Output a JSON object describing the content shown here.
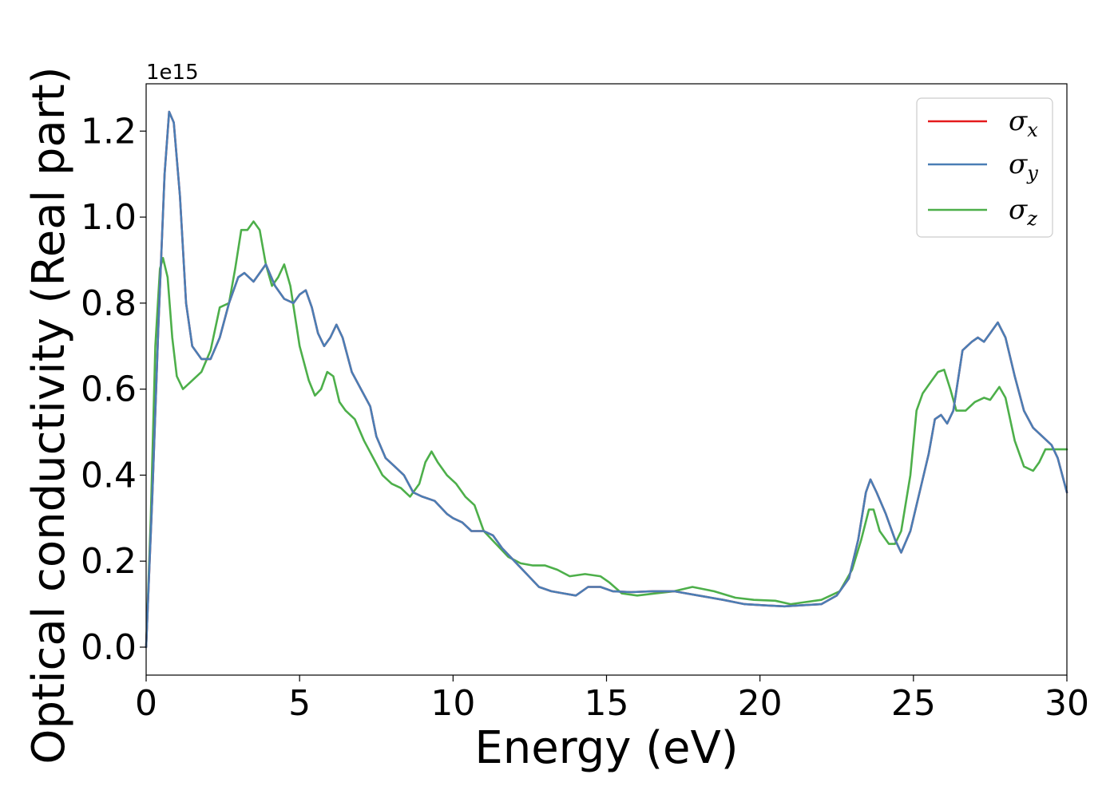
{
  "chart_data": {
    "type": "line",
    "xlabel": "Energy (eV)",
    "ylabel": "Optical conductivity (Real part)",
    "y_offset_label": "1e15",
    "xlim": [
      0,
      30
    ],
    "ylim": [
      -0.065,
      1.31
    ],
    "x_ticks": [
      0,
      5,
      10,
      15,
      20,
      25,
      30
    ],
    "x_tick_labels": [
      "0",
      "5",
      "10",
      "15",
      "20",
      "25",
      "30"
    ],
    "y_ticks": [
      0.0,
      0.2,
      0.4,
      0.6,
      0.8,
      1.0,
      1.2
    ],
    "y_tick_labels": [
      "0.0",
      "0.2",
      "0.4",
      "0.6",
      "0.8",
      "1.0",
      "1.2"
    ],
    "grid": false,
    "legend_position": "top-right",
    "series": [
      {
        "name": "σ",
        "subscript": "x",
        "color": "#e41a1c",
        "points": [
          [
            0,
            0
          ],
          [
            0.2,
            0.35
          ],
          [
            0.4,
            0.75
          ],
          [
            0.6,
            1.1
          ],
          [
            0.75,
            1.245
          ],
          [
            0.9,
            1.22
          ],
          [
            1.1,
            1.05
          ],
          [
            1.3,
            0.8
          ],
          [
            1.5,
            0.7
          ],
          [
            1.8,
            0.67
          ],
          [
            2.1,
            0.67
          ],
          [
            2.4,
            0.72
          ],
          [
            2.7,
            0.8
          ],
          [
            3.0,
            0.86
          ],
          [
            3.2,
            0.87
          ],
          [
            3.5,
            0.85
          ],
          [
            3.7,
            0.87
          ],
          [
            3.9,
            0.89
          ],
          [
            4.2,
            0.84
          ],
          [
            4.5,
            0.81
          ],
          [
            4.8,
            0.8
          ],
          [
            5.0,
            0.82
          ],
          [
            5.2,
            0.83
          ],
          [
            5.4,
            0.79
          ],
          [
            5.6,
            0.73
          ],
          [
            5.8,
            0.7
          ],
          [
            6.0,
            0.72
          ],
          [
            6.2,
            0.75
          ],
          [
            6.4,
            0.72
          ],
          [
            6.7,
            0.64
          ],
          [
            7.0,
            0.6
          ],
          [
            7.3,
            0.56
          ],
          [
            7.5,
            0.49
          ],
          [
            7.8,
            0.44
          ],
          [
            8.1,
            0.42
          ],
          [
            8.4,
            0.4
          ],
          [
            8.7,
            0.36
          ],
          [
            9.0,
            0.35
          ],
          [
            9.4,
            0.34
          ],
          [
            9.8,
            0.31
          ],
          [
            10.0,
            0.3
          ],
          [
            10.3,
            0.29
          ],
          [
            10.6,
            0.27
          ],
          [
            11.0,
            0.27
          ],
          [
            11.3,
            0.26
          ],
          [
            11.6,
            0.23
          ],
          [
            12.0,
            0.2
          ],
          [
            12.4,
            0.17
          ],
          [
            12.8,
            0.14
          ],
          [
            13.2,
            0.13
          ],
          [
            13.6,
            0.125
          ],
          [
            14.0,
            0.12
          ],
          [
            14.4,
            0.14
          ],
          [
            14.8,
            0.14
          ],
          [
            15.2,
            0.13
          ],
          [
            15.8,
            0.128
          ],
          [
            16.5,
            0.13
          ],
          [
            17.2,
            0.13
          ],
          [
            18.0,
            0.12
          ],
          [
            18.8,
            0.11
          ],
          [
            19.5,
            0.1
          ],
          [
            20.2,
            0.097
          ],
          [
            20.8,
            0.095
          ],
          [
            21.5,
            0.098
          ],
          [
            22.0,
            0.1
          ],
          [
            22.5,
            0.12
          ],
          [
            22.9,
            0.16
          ],
          [
            23.2,
            0.25
          ],
          [
            23.45,
            0.36
          ],
          [
            23.6,
            0.39
          ],
          [
            23.8,
            0.36
          ],
          [
            24.1,
            0.31
          ],
          [
            24.4,
            0.25
          ],
          [
            24.6,
            0.22
          ],
          [
            24.9,
            0.27
          ],
          [
            25.2,
            0.36
          ],
          [
            25.5,
            0.45
          ],
          [
            25.7,
            0.53
          ],
          [
            25.9,
            0.54
          ],
          [
            26.1,
            0.52
          ],
          [
            26.3,
            0.55
          ],
          [
            26.6,
            0.69
          ],
          [
            26.9,
            0.71
          ],
          [
            27.1,
            0.72
          ],
          [
            27.3,
            0.71
          ],
          [
            27.5,
            0.73
          ],
          [
            27.75,
            0.755
          ],
          [
            28.0,
            0.72
          ],
          [
            28.3,
            0.63
          ],
          [
            28.6,
            0.55
          ],
          [
            28.9,
            0.51
          ],
          [
            29.2,
            0.49
          ],
          [
            29.5,
            0.47
          ],
          [
            29.7,
            0.44
          ],
          [
            30.0,
            0.36
          ]
        ]
      },
      {
        "name": "σ",
        "subscript": "y",
        "color": "#4a7eb5",
        "points": [
          [
            0,
            0
          ],
          [
            0.2,
            0.35
          ],
          [
            0.4,
            0.75
          ],
          [
            0.6,
            1.1
          ],
          [
            0.75,
            1.245
          ],
          [
            0.9,
            1.22
          ],
          [
            1.1,
            1.05
          ],
          [
            1.3,
            0.8
          ],
          [
            1.5,
            0.7
          ],
          [
            1.8,
            0.67
          ],
          [
            2.1,
            0.67
          ],
          [
            2.4,
            0.72
          ],
          [
            2.7,
            0.8
          ],
          [
            3.0,
            0.86
          ],
          [
            3.2,
            0.87
          ],
          [
            3.5,
            0.85
          ],
          [
            3.7,
            0.87
          ],
          [
            3.9,
            0.89
          ],
          [
            4.2,
            0.84
          ],
          [
            4.5,
            0.81
          ],
          [
            4.8,
            0.8
          ],
          [
            5.0,
            0.82
          ],
          [
            5.2,
            0.83
          ],
          [
            5.4,
            0.79
          ],
          [
            5.6,
            0.73
          ],
          [
            5.8,
            0.7
          ],
          [
            6.0,
            0.72
          ],
          [
            6.2,
            0.75
          ],
          [
            6.4,
            0.72
          ],
          [
            6.7,
            0.64
          ],
          [
            7.0,
            0.6
          ],
          [
            7.3,
            0.56
          ],
          [
            7.5,
            0.49
          ],
          [
            7.8,
            0.44
          ],
          [
            8.1,
            0.42
          ],
          [
            8.4,
            0.4
          ],
          [
            8.7,
            0.36
          ],
          [
            9.0,
            0.35
          ],
          [
            9.4,
            0.34
          ],
          [
            9.8,
            0.31
          ],
          [
            10.0,
            0.3
          ],
          [
            10.3,
            0.29
          ],
          [
            10.6,
            0.27
          ],
          [
            11.0,
            0.27
          ],
          [
            11.3,
            0.26
          ],
          [
            11.6,
            0.23
          ],
          [
            12.0,
            0.2
          ],
          [
            12.4,
            0.17
          ],
          [
            12.8,
            0.14
          ],
          [
            13.2,
            0.13
          ],
          [
            13.6,
            0.125
          ],
          [
            14.0,
            0.12
          ],
          [
            14.4,
            0.14
          ],
          [
            14.8,
            0.14
          ],
          [
            15.2,
            0.13
          ],
          [
            15.8,
            0.128
          ],
          [
            16.5,
            0.13
          ],
          [
            17.2,
            0.13
          ],
          [
            18.0,
            0.12
          ],
          [
            18.8,
            0.11
          ],
          [
            19.5,
            0.1
          ],
          [
            20.2,
            0.097
          ],
          [
            20.8,
            0.095
          ],
          [
            21.5,
            0.098
          ],
          [
            22.0,
            0.1
          ],
          [
            22.5,
            0.12
          ],
          [
            22.9,
            0.16
          ],
          [
            23.2,
            0.25
          ],
          [
            23.45,
            0.36
          ],
          [
            23.6,
            0.39
          ],
          [
            23.8,
            0.36
          ],
          [
            24.1,
            0.31
          ],
          [
            24.4,
            0.25
          ],
          [
            24.6,
            0.22
          ],
          [
            24.9,
            0.27
          ],
          [
            25.2,
            0.36
          ],
          [
            25.5,
            0.45
          ],
          [
            25.7,
            0.53
          ],
          [
            25.9,
            0.54
          ],
          [
            26.1,
            0.52
          ],
          [
            26.3,
            0.55
          ],
          [
            26.6,
            0.69
          ],
          [
            26.9,
            0.71
          ],
          [
            27.1,
            0.72
          ],
          [
            27.3,
            0.71
          ],
          [
            27.5,
            0.73
          ],
          [
            27.75,
            0.755
          ],
          [
            28.0,
            0.72
          ],
          [
            28.3,
            0.63
          ],
          [
            28.6,
            0.55
          ],
          [
            28.9,
            0.51
          ],
          [
            29.2,
            0.49
          ],
          [
            29.5,
            0.47
          ],
          [
            29.7,
            0.44
          ],
          [
            30.0,
            0.36
          ]
        ]
      },
      {
        "name": "σ",
        "subscript": "z",
        "color": "#4daf4a",
        "points": [
          [
            0,
            0
          ],
          [
            0.15,
            0.3
          ],
          [
            0.3,
            0.7
          ],
          [
            0.45,
            0.88
          ],
          [
            0.55,
            0.905
          ],
          [
            0.7,
            0.86
          ],
          [
            0.85,
            0.72
          ],
          [
            1.0,
            0.63
          ],
          [
            1.2,
            0.6
          ],
          [
            1.5,
            0.62
          ],
          [
            1.8,
            0.64
          ],
          [
            2.1,
            0.69
          ],
          [
            2.4,
            0.79
          ],
          [
            2.7,
            0.8
          ],
          [
            2.9,
            0.88
          ],
          [
            3.1,
            0.97
          ],
          [
            3.3,
            0.97
          ],
          [
            3.5,
            0.99
          ],
          [
            3.7,
            0.97
          ],
          [
            3.9,
            0.89
          ],
          [
            4.1,
            0.84
          ],
          [
            4.3,
            0.86
          ],
          [
            4.5,
            0.89
          ],
          [
            4.7,
            0.84
          ],
          [
            5.0,
            0.7
          ],
          [
            5.3,
            0.62
          ],
          [
            5.5,
            0.585
          ],
          [
            5.7,
            0.6
          ],
          [
            5.9,
            0.64
          ],
          [
            6.1,
            0.63
          ],
          [
            6.3,
            0.57
          ],
          [
            6.5,
            0.55
          ],
          [
            6.8,
            0.53
          ],
          [
            7.1,
            0.48
          ],
          [
            7.4,
            0.44
          ],
          [
            7.7,
            0.4
          ],
          [
            8.0,
            0.38
          ],
          [
            8.3,
            0.37
          ],
          [
            8.6,
            0.35
          ],
          [
            8.9,
            0.38
          ],
          [
            9.1,
            0.43
          ],
          [
            9.3,
            0.455
          ],
          [
            9.5,
            0.43
          ],
          [
            9.8,
            0.4
          ],
          [
            10.1,
            0.38
          ],
          [
            10.4,
            0.35
          ],
          [
            10.7,
            0.33
          ],
          [
            11.0,
            0.27
          ],
          [
            11.4,
            0.24
          ],
          [
            11.8,
            0.21
          ],
          [
            12.2,
            0.195
          ],
          [
            12.6,
            0.19
          ],
          [
            13.0,
            0.19
          ],
          [
            13.4,
            0.18
          ],
          [
            13.8,
            0.165
          ],
          [
            14.3,
            0.17
          ],
          [
            14.8,
            0.165
          ],
          [
            15.1,
            0.15
          ],
          [
            15.5,
            0.125
          ],
          [
            16.0,
            0.12
          ],
          [
            16.6,
            0.125
          ],
          [
            17.2,
            0.13
          ],
          [
            17.8,
            0.14
          ],
          [
            18.5,
            0.13
          ],
          [
            19.2,
            0.115
          ],
          [
            19.8,
            0.11
          ],
          [
            20.5,
            0.108
          ],
          [
            21.0,
            0.1
          ],
          [
            21.5,
            0.105
          ],
          [
            22.0,
            0.11
          ],
          [
            22.6,
            0.13
          ],
          [
            23.0,
            0.18
          ],
          [
            23.3,
            0.25
          ],
          [
            23.55,
            0.32
          ],
          [
            23.7,
            0.32
          ],
          [
            23.9,
            0.27
          ],
          [
            24.2,
            0.24
          ],
          [
            24.4,
            0.24
          ],
          [
            24.6,
            0.27
          ],
          [
            24.9,
            0.4
          ],
          [
            25.1,
            0.55
          ],
          [
            25.3,
            0.59
          ],
          [
            25.6,
            0.62
          ],
          [
            25.8,
            0.64
          ],
          [
            26.0,
            0.645
          ],
          [
            26.2,
            0.6
          ],
          [
            26.4,
            0.55
          ],
          [
            26.7,
            0.55
          ],
          [
            27.0,
            0.57
          ],
          [
            27.3,
            0.58
          ],
          [
            27.5,
            0.575
          ],
          [
            27.8,
            0.605
          ],
          [
            28.0,
            0.58
          ],
          [
            28.3,
            0.48
          ],
          [
            28.6,
            0.42
          ],
          [
            28.9,
            0.41
          ],
          [
            29.1,
            0.43
          ],
          [
            29.3,
            0.46
          ],
          [
            29.6,
            0.46
          ],
          [
            30.0,
            0.46
          ]
        ]
      }
    ]
  }
}
